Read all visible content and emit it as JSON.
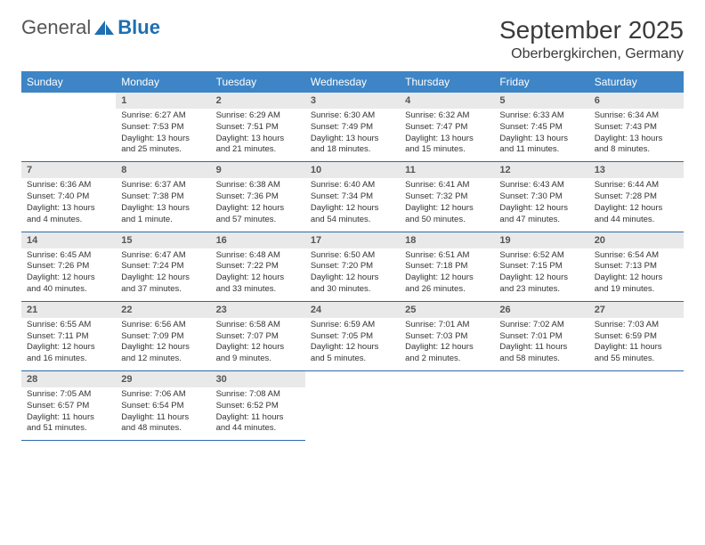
{
  "logo": {
    "general": "General",
    "blue": "Blue"
  },
  "title": "September 2025",
  "location": "Oberbergkirchen, Germany",
  "colors": {
    "header_bg": "#3d85c6",
    "header_text": "#ffffff",
    "daynum_bg": "#e9e9e9",
    "row_divider": "#2f6aa8",
    "logo_blue": "#1f6fb2"
  },
  "day_headers": [
    "Sunday",
    "Monday",
    "Tuesday",
    "Wednesday",
    "Thursday",
    "Friday",
    "Saturday"
  ],
  "weeks": [
    {
      "nums": [
        "",
        "1",
        "2",
        "3",
        "4",
        "5",
        "6"
      ],
      "cells": [
        {
          "sunrise": "",
          "sunset": "",
          "daylight": ""
        },
        {
          "sunrise": "Sunrise: 6:27 AM",
          "sunset": "Sunset: 7:53 PM",
          "daylight": "Daylight: 13 hours and 25 minutes."
        },
        {
          "sunrise": "Sunrise: 6:29 AM",
          "sunset": "Sunset: 7:51 PM",
          "daylight": "Daylight: 13 hours and 21 minutes."
        },
        {
          "sunrise": "Sunrise: 6:30 AM",
          "sunset": "Sunset: 7:49 PM",
          "daylight": "Daylight: 13 hours and 18 minutes."
        },
        {
          "sunrise": "Sunrise: 6:32 AM",
          "sunset": "Sunset: 7:47 PM",
          "daylight": "Daylight: 13 hours and 15 minutes."
        },
        {
          "sunrise": "Sunrise: 6:33 AM",
          "sunset": "Sunset: 7:45 PM",
          "daylight": "Daylight: 13 hours and 11 minutes."
        },
        {
          "sunrise": "Sunrise: 6:34 AM",
          "sunset": "Sunset: 7:43 PM",
          "daylight": "Daylight: 13 hours and 8 minutes."
        }
      ]
    },
    {
      "nums": [
        "7",
        "8",
        "9",
        "10",
        "11",
        "12",
        "13"
      ],
      "cells": [
        {
          "sunrise": "Sunrise: 6:36 AM",
          "sunset": "Sunset: 7:40 PM",
          "daylight": "Daylight: 13 hours and 4 minutes."
        },
        {
          "sunrise": "Sunrise: 6:37 AM",
          "sunset": "Sunset: 7:38 PM",
          "daylight": "Daylight: 13 hours and 1 minute."
        },
        {
          "sunrise": "Sunrise: 6:38 AM",
          "sunset": "Sunset: 7:36 PM",
          "daylight": "Daylight: 12 hours and 57 minutes."
        },
        {
          "sunrise": "Sunrise: 6:40 AM",
          "sunset": "Sunset: 7:34 PM",
          "daylight": "Daylight: 12 hours and 54 minutes."
        },
        {
          "sunrise": "Sunrise: 6:41 AM",
          "sunset": "Sunset: 7:32 PM",
          "daylight": "Daylight: 12 hours and 50 minutes."
        },
        {
          "sunrise": "Sunrise: 6:43 AM",
          "sunset": "Sunset: 7:30 PM",
          "daylight": "Daylight: 12 hours and 47 minutes."
        },
        {
          "sunrise": "Sunrise: 6:44 AM",
          "sunset": "Sunset: 7:28 PM",
          "daylight": "Daylight: 12 hours and 44 minutes."
        }
      ]
    },
    {
      "nums": [
        "14",
        "15",
        "16",
        "17",
        "18",
        "19",
        "20"
      ],
      "cells": [
        {
          "sunrise": "Sunrise: 6:45 AM",
          "sunset": "Sunset: 7:26 PM",
          "daylight": "Daylight: 12 hours and 40 minutes."
        },
        {
          "sunrise": "Sunrise: 6:47 AM",
          "sunset": "Sunset: 7:24 PM",
          "daylight": "Daylight: 12 hours and 37 minutes."
        },
        {
          "sunrise": "Sunrise: 6:48 AM",
          "sunset": "Sunset: 7:22 PM",
          "daylight": "Daylight: 12 hours and 33 minutes."
        },
        {
          "sunrise": "Sunrise: 6:50 AM",
          "sunset": "Sunset: 7:20 PM",
          "daylight": "Daylight: 12 hours and 30 minutes."
        },
        {
          "sunrise": "Sunrise: 6:51 AM",
          "sunset": "Sunset: 7:18 PM",
          "daylight": "Daylight: 12 hours and 26 minutes."
        },
        {
          "sunrise": "Sunrise: 6:52 AM",
          "sunset": "Sunset: 7:15 PM",
          "daylight": "Daylight: 12 hours and 23 minutes."
        },
        {
          "sunrise": "Sunrise: 6:54 AM",
          "sunset": "Sunset: 7:13 PM",
          "daylight": "Daylight: 12 hours and 19 minutes."
        }
      ]
    },
    {
      "nums": [
        "21",
        "22",
        "23",
        "24",
        "25",
        "26",
        "27"
      ],
      "cells": [
        {
          "sunrise": "Sunrise: 6:55 AM",
          "sunset": "Sunset: 7:11 PM",
          "daylight": "Daylight: 12 hours and 16 minutes."
        },
        {
          "sunrise": "Sunrise: 6:56 AM",
          "sunset": "Sunset: 7:09 PM",
          "daylight": "Daylight: 12 hours and 12 minutes."
        },
        {
          "sunrise": "Sunrise: 6:58 AM",
          "sunset": "Sunset: 7:07 PM",
          "daylight": "Daylight: 12 hours and 9 minutes."
        },
        {
          "sunrise": "Sunrise: 6:59 AM",
          "sunset": "Sunset: 7:05 PM",
          "daylight": "Daylight: 12 hours and 5 minutes."
        },
        {
          "sunrise": "Sunrise: 7:01 AM",
          "sunset": "Sunset: 7:03 PM",
          "daylight": "Daylight: 12 hours and 2 minutes."
        },
        {
          "sunrise": "Sunrise: 7:02 AM",
          "sunset": "Sunset: 7:01 PM",
          "daylight": "Daylight: 11 hours and 58 minutes."
        },
        {
          "sunrise": "Sunrise: 7:03 AM",
          "sunset": "Sunset: 6:59 PM",
          "daylight": "Daylight: 11 hours and 55 minutes."
        }
      ]
    },
    {
      "nums": [
        "28",
        "29",
        "30",
        "",
        "",
        "",
        ""
      ],
      "cells": [
        {
          "sunrise": "Sunrise: 7:05 AM",
          "sunset": "Sunset: 6:57 PM",
          "daylight": "Daylight: 11 hours and 51 minutes."
        },
        {
          "sunrise": "Sunrise: 7:06 AM",
          "sunset": "Sunset: 6:54 PM",
          "daylight": "Daylight: 11 hours and 48 minutes."
        },
        {
          "sunrise": "Sunrise: 7:08 AM",
          "sunset": "Sunset: 6:52 PM",
          "daylight": "Daylight: 11 hours and 44 minutes."
        },
        {
          "sunrise": "",
          "sunset": "",
          "daylight": ""
        },
        {
          "sunrise": "",
          "sunset": "",
          "daylight": ""
        },
        {
          "sunrise": "",
          "sunset": "",
          "daylight": ""
        },
        {
          "sunrise": "",
          "sunset": "",
          "daylight": ""
        }
      ]
    }
  ]
}
